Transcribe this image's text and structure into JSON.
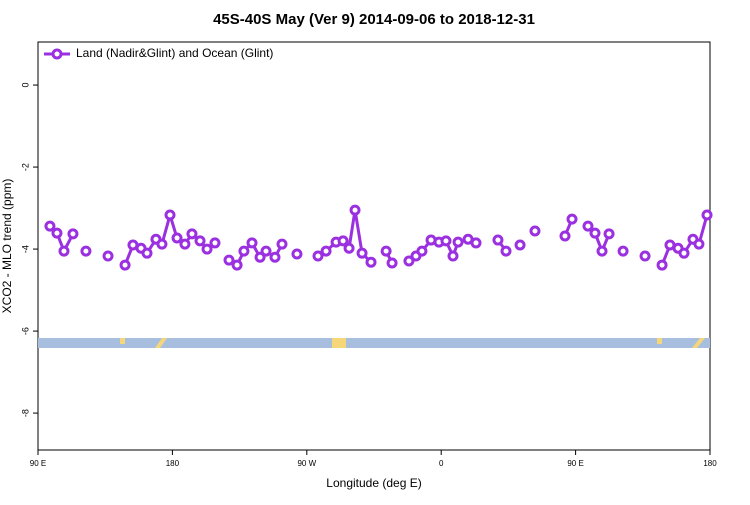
{
  "chart_data": {
    "type": "line",
    "title": "45S-40S May (Ver 9)   2014-09-06 to 2018-12-31",
    "x_label": "Longitude (deg E)",
    "y_label": "XCO2 - MLO trend (ppm)",
    "xlim": [
      90,
      540
    ],
    "ylim": [
      -8.9,
      1.05
    ],
    "xticks": [
      {
        "value": 90,
        "label": "90 E"
      },
      180,
      {
        "value": 270,
        "label": "90 W"
      },
      {
        "value": 360,
        "label": "0"
      },
      {
        "value": 450,
        "label": "90 E"
      },
      {
        "value": 540,
        "label": "180"
      }
    ],
    "yticks": [
      0,
      -2,
      -4,
      -6,
      -8
    ],
    "legend": "top-left",
    "series": [
      {
        "name": "Land (Nadir&Glint) and Ocean (Glint)",
        "color": "#9b30e0",
        "x": [
          98,
          102.7,
          107.4,
          113.4,
          null,
          122.1,
          null,
          136.9,
          null,
          148.3,
          153.6,
          159,
          163,
          169,
          173,
          178.4,
          183.1,
          188.4,
          193.1,
          198.5,
          203.2,
          208.5,
          null,
          217.9,
          223.3,
          227.9,
          233.3,
          238.7,
          242.7,
          248.7,
          253.4,
          null,
          263.4,
          null,
          277.5,
          282.9,
          289.6,
          294.3,
          298.3,
          302.3,
          307,
          313,
          null,
          323.1,
          327.1,
          null,
          338.4,
          343.1,
          347.1,
          353.2,
          358.5,
          363.2,
          367.9,
          371.3,
          378,
          383.3,
          null,
          398,
          403.4,
          null,
          412.8,
          null,
          422.8,
          null,
          442.9,
          447.6,
          null,
          458.3,
          463,
          467.7,
          472.4,
          null,
          481.8,
          null,
          496.5,
          null,
          507.9,
          513.2,
          518.6,
          522.6,
          528.6,
          532.6,
          538
        ],
        "values": [
          -3.44,
          -3.61,
          -4.05,
          -3.63,
          null,
          -4.05,
          null,
          -4.17,
          null,
          -4.39,
          -3.9,
          -3.98,
          -4.1,
          -3.76,
          -3.88,
          -3.17,
          -3.73,
          -3.88,
          -3.63,
          -3.8,
          -4.0,
          -3.85,
          null,
          -4.27,
          -4.39,
          -4.05,
          -3.85,
          -4.2,
          -4.05,
          -4.2,
          -3.88,
          null,
          -4.12,
          null,
          -4.17,
          -4.05,
          -3.83,
          -3.8,
          -3.98,
          -3.05,
          -4.1,
          -4.32,
          null,
          -4.05,
          -4.34,
          null,
          -4.29,
          -4.17,
          -4.05,
          -3.78,
          -3.83,
          -3.8,
          -4.17,
          -3.83,
          -3.76,
          -3.85,
          null,
          -3.78,
          -4.05,
          null,
          -3.9,
          null,
          -3.56,
          null,
          -3.68,
          -3.27,
          null,
          -3.44,
          -3.61,
          -4.05,
          -3.63,
          null,
          -4.05,
          null,
          -4.17,
          null,
          -4.39,
          -3.9,
          -3.98,
          -4.1,
          -3.76,
          -3.88,
          -3.17
        ]
      }
    ]
  }
}
